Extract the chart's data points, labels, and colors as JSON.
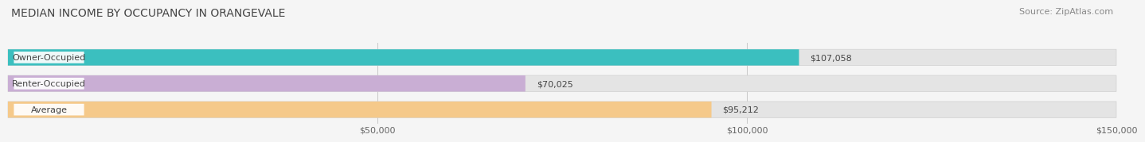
{
  "title": "MEDIAN INCOME BY OCCUPANCY IN ORANGEVALE",
  "source": "Source: ZipAtlas.com",
  "categories": [
    "Owner-Occupied",
    "Renter-Occupied",
    "Average"
  ],
  "values": [
    107058,
    70025,
    95212
  ],
  "bar_colors": [
    "#3bbfbf",
    "#c9aed4",
    "#f5c98a"
  ],
  "bar_bg_color": "#e4e4e4",
  "value_labels": [
    "$107,058",
    "$70,025",
    "$95,212"
  ],
  "xlim": [
    0,
    150000
  ],
  "xticks": [
    50000,
    100000,
    150000
  ],
  "xticklabels": [
    "$50,000",
    "$100,000",
    "$150,000"
  ],
  "title_fontsize": 10,
  "source_fontsize": 8,
  "label_fontsize": 8,
  "value_fontsize": 8,
  "background_color": "#f5f5f5",
  "bar_height": 0.62,
  "grid_color": "#c8c8c8",
  "label_box_color": "#ffffff",
  "text_color": "#444444",
  "source_color": "#888888"
}
